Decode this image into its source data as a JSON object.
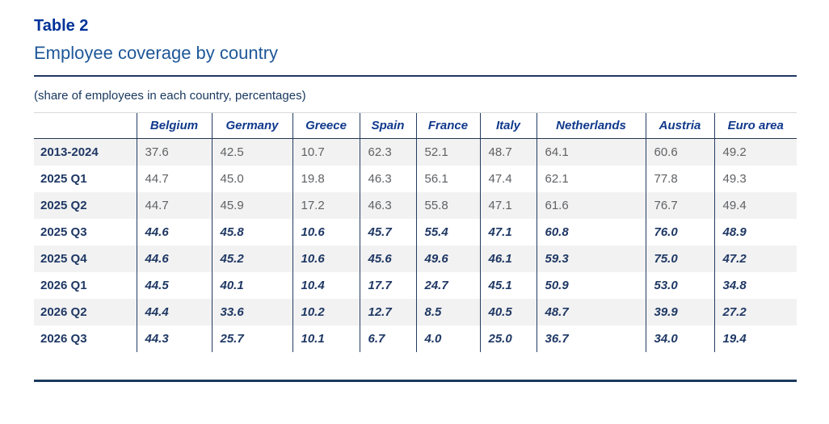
{
  "header": {
    "table_label": "Table 2",
    "title": "Employee coverage by country",
    "caption": "(share of employees in each country, percentages)"
  },
  "colors": {
    "title_blue": "#003299",
    "subtitle_blue": "#1e5799",
    "header_blue": "#10398c",
    "navy_text": "#1f3864",
    "value_gray": "#5f6164",
    "stripe_bg": "#f2f2f2",
    "separator_navy": "#233c63",
    "rule_navy": "#1f3864"
  },
  "chart_data": {
    "type": "table",
    "title": "Employee coverage by country",
    "unit_note": "(share of employees in each country, percentages)",
    "columns": [
      "",
      "Belgium",
      "Germany",
      "Greece",
      "Spain",
      "France",
      "Italy",
      "Netherlands",
      "Austria",
      "Euro area"
    ],
    "rows": [
      {
        "label": "2013-2024",
        "forecast": false,
        "values": [
          "37.6",
          "42.5",
          "10.7",
          "62.3",
          "52.1",
          "48.7",
          "64.1",
          "60.6",
          "49.2"
        ]
      },
      {
        "label": "2025 Q1",
        "forecast": false,
        "values": [
          "44.7",
          "45.0",
          "19.8",
          "46.3",
          "56.1",
          "47.4",
          "62.1",
          "77.8",
          "49.3"
        ]
      },
      {
        "label": "2025 Q2",
        "forecast": false,
        "values": [
          "44.7",
          "45.9",
          "17.2",
          "46.3",
          "55.8",
          "47.1",
          "61.6",
          "76.7",
          "49.4"
        ]
      },
      {
        "label": "2025 Q3",
        "forecast": true,
        "values": [
          "44.6",
          "45.8",
          "10.6",
          "45.7",
          "55.4",
          "47.1",
          "60.8",
          "76.0",
          "48.9"
        ]
      },
      {
        "label": "2025 Q4",
        "forecast": true,
        "values": [
          "44.6",
          "45.2",
          "10.6",
          "45.6",
          "49.6",
          "46.1",
          "59.3",
          "75.0",
          "47.2"
        ]
      },
      {
        "label": "2026 Q1",
        "forecast": true,
        "values": [
          "44.5",
          "40.1",
          "10.4",
          "17.7",
          "24.7",
          "45.1",
          "50.9",
          "53.0",
          "34.8"
        ]
      },
      {
        "label": "2026 Q2",
        "forecast": true,
        "values": [
          "44.4",
          "33.6",
          "10.2",
          "12.7",
          "8.5",
          "40.5",
          "48.7",
          "39.9",
          "27.2"
        ]
      },
      {
        "label": "2026 Q3",
        "forecast": true,
        "values": [
          "44.3",
          "25.7",
          "10.1",
          "6.7",
          "4.0",
          "25.0",
          "36.7",
          "34.0",
          "19.4"
        ]
      }
    ]
  }
}
